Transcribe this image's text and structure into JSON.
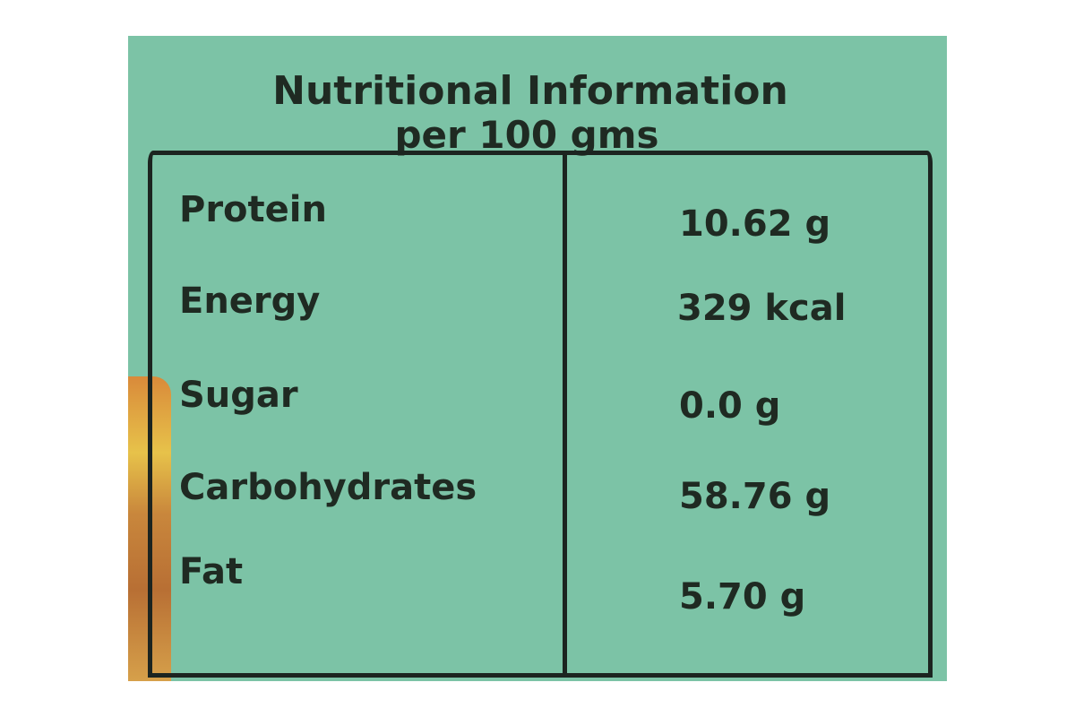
{
  "title": "Nutritional Information",
  "subtitle": "per 100 gms",
  "colors": {
    "background": "#7cc3a6",
    "ink": "#1f2a22"
  },
  "rows": [
    {
      "label": "Protein",
      "value": "10.62 g"
    },
    {
      "label": "Energy",
      "value": "329 kcal"
    },
    {
      "label": "Sugar",
      "value": "0.0 g"
    },
    {
      "label": "Carbohydrates",
      "value": "58.76 g"
    },
    {
      "label": "Fat",
      "value": "5.70 g"
    }
  ]
}
